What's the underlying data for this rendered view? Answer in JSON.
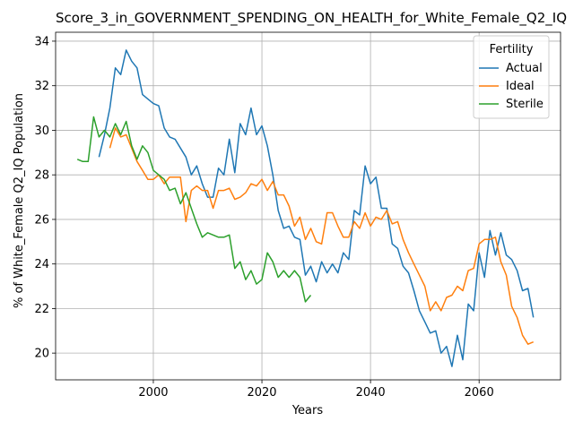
{
  "chart_data": {
    "type": "line",
    "title": "Score_3_in_GOVERNMENT_SPENDING_ON_HEALTH_for_White_Female_Q2_IQ",
    "xlabel": "Years",
    "ylabel": "% of White_Female Q2_IQ Population",
    "xlim": [
      1982,
      2075
    ],
    "ylim": [
      18.8,
      34.4
    ],
    "xticks": [
      2000,
      2020,
      2040,
      2060
    ],
    "yticks": [
      20,
      22,
      24,
      26,
      28,
      30,
      32,
      34
    ],
    "grid": true,
    "legend": {
      "title": "Fertility",
      "placement": "top-right"
    },
    "series": [
      {
        "name": "Actual",
        "color": "#1f77b4",
        "x": [
          1990,
          1991,
          1992,
          1993,
          1994,
          1995,
          1996,
          1997,
          1998,
          1999,
          2000,
          2001,
          2002,
          2003,
          2004,
          2005,
          2006,
          2007,
          2008,
          2009,
          2010,
          2011,
          2012,
          2013,
          2014,
          2015,
          2016,
          2017,
          2018,
          2019,
          2020,
          2021,
          2022,
          2023,
          2024,
          2025,
          2026,
          2027,
          2028,
          2029,
          2030,
          2031,
          2032,
          2033,
          2034,
          2035,
          2036,
          2037,
          2038,
          2039,
          2040,
          2041,
          2042,
          2043,
          2044,
          2045,
          2046,
          2047,
          2048,
          2049,
          2050,
          2051,
          2052,
          2053,
          2054,
          2055,
          2056,
          2057,
          2058,
          2059,
          2060,
          2061,
          2062,
          2063,
          2064,
          2065,
          2066,
          2067,
          2068,
          2069,
          2070
        ],
        "values": [
          28.8,
          29.8,
          31.0,
          32.8,
          32.5,
          33.6,
          33.1,
          32.8,
          31.6,
          31.4,
          31.2,
          31.1,
          30.1,
          29.7,
          29.6,
          29.2,
          28.8,
          28.0,
          28.4,
          27.6,
          27.0,
          27.0,
          28.3,
          28.0,
          29.6,
          28.1,
          30.3,
          29.8,
          31.0,
          29.8,
          30.2,
          29.3,
          28.0,
          26.4,
          25.6,
          25.7,
          25.2,
          25.1,
          23.5,
          23.9,
          23.2,
          24.1,
          23.6,
          24.0,
          23.6,
          24.5,
          24.2,
          26.4,
          26.2,
          28.4,
          27.6,
          27.9,
          26.5,
          26.5,
          24.9,
          24.7,
          23.9,
          23.6,
          22.8,
          21.9,
          21.4,
          20.9,
          21.0,
          20.0,
          20.3,
          19.4,
          20.8,
          19.7,
          22.2,
          21.9,
          24.5,
          23.4,
          25.5,
          24.4,
          25.4,
          24.4,
          24.2,
          23.7,
          22.8,
          22.9,
          21.6
        ]
      },
      {
        "name": "Ideal",
        "color": "#ff7f0e",
        "x": [
          1992,
          1993,
          1994,
          1995,
          1996,
          1997,
          1998,
          1999,
          2000,
          2001,
          2002,
          2003,
          2004,
          2005,
          2006,
          2007,
          2008,
          2009,
          2010,
          2011,
          2012,
          2013,
          2014,
          2015,
          2016,
          2017,
          2018,
          2019,
          2020,
          2021,
          2022,
          2023,
          2024,
          2025,
          2026,
          2027,
          2028,
          2029,
          2030,
          2031,
          2032,
          2033,
          2034,
          2035,
          2036,
          2037,
          2038,
          2039,
          2040,
          2041,
          2042,
          2043,
          2044,
          2045,
          2046,
          2047,
          2048,
          2049,
          2050,
          2051,
          2052,
          2053,
          2054,
          2055,
          2056,
          2057,
          2058,
          2059,
          2060,
          2061,
          2062,
          2063,
          2064,
          2065,
          2066,
          2067,
          2068,
          2069,
          2070
        ],
        "values": [
          29.2,
          30.1,
          29.7,
          29.8,
          29.2,
          28.6,
          28.2,
          27.8,
          27.8,
          28.0,
          27.6,
          27.9,
          27.9,
          27.9,
          25.9,
          27.3,
          27.5,
          27.3,
          27.3,
          26.5,
          27.3,
          27.3,
          27.4,
          26.9,
          27.0,
          27.2,
          27.6,
          27.5,
          27.8,
          27.3,
          27.7,
          27.1,
          27.1,
          26.6,
          25.7,
          26.1,
          25.1,
          25.6,
          25.0,
          24.9,
          26.3,
          26.3,
          25.7,
          25.2,
          25.2,
          25.9,
          25.6,
          26.3,
          25.7,
          26.1,
          26.0,
          26.4,
          25.8,
          25.9,
          25.1,
          24.5,
          24.0,
          23.5,
          23.0,
          21.9,
          22.3,
          21.9,
          22.5,
          22.6,
          23.0,
          22.8,
          23.7,
          23.8,
          24.9,
          25.1,
          25.1,
          25.2,
          24.1,
          23.5,
          22.1,
          21.6,
          20.8,
          20.4,
          20.5
        ]
      },
      {
        "name": "Sterile",
        "color": "#2ca02c",
        "x": [
          1986,
          1987,
          1988,
          1989,
          1990,
          1991,
          1992,
          1993,
          1994,
          1995,
          1996,
          1997,
          1998,
          1999,
          2000,
          2001,
          2002,
          2003,
          2004,
          2005,
          2006,
          2007,
          2008,
          2009,
          2010,
          2011,
          2012,
          2013,
          2014,
          2015,
          2016,
          2017,
          2018,
          2019,
          2020,
          2021,
          2022,
          2023,
          2024,
          2025,
          2026,
          2027,
          2028,
          2029
        ],
        "values": [
          28.7,
          28.6,
          28.6,
          30.6,
          29.7,
          30.0,
          29.7,
          30.3,
          29.8,
          30.4,
          29.3,
          28.7,
          29.3,
          29.0,
          28.2,
          28.0,
          27.8,
          27.3,
          27.4,
          26.7,
          27.2,
          26.5,
          25.8,
          25.2,
          25.4,
          25.3,
          25.2,
          25.2,
          25.3,
          23.8,
          24.1,
          23.3,
          23.7,
          23.1,
          23.3,
          24.5,
          24.1,
          23.4,
          23.7,
          23.4,
          23.7,
          23.4,
          22.3,
          22.6
        ]
      }
    ]
  }
}
